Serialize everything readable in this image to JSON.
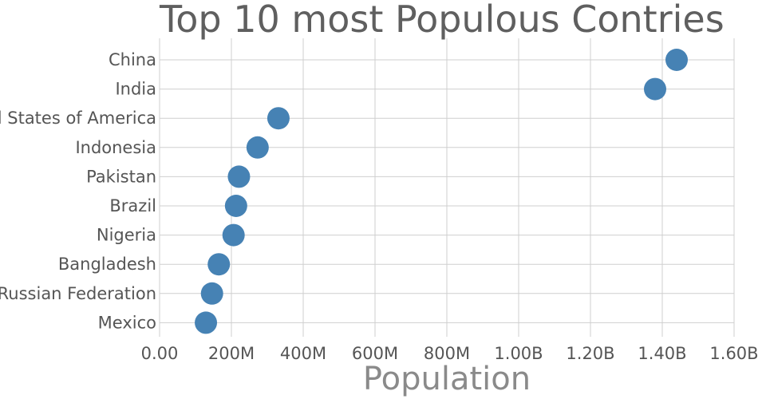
{
  "chart_data": {
    "type": "scatter",
    "title": "Top 10 most Populous Contries",
    "xlabel": "Population",
    "ylabel": "",
    "categories": [
      "China",
      "India",
      "United States of America",
      "Indonesia",
      "Pakistan",
      "Brazil",
      "Nigeria",
      "Bangladesh",
      "Russian Federation",
      "Mexico"
    ],
    "values": [
      1440000000,
      1380000000,
      331000000,
      273000000,
      221000000,
      213000000,
      206000000,
      165000000,
      146000000,
      129000000
    ],
    "xlim": [
      0,
      1600000000
    ],
    "xticks": [
      0,
      200000000,
      400000000,
      600000000,
      800000000,
      1000000000,
      1200000000,
      1400000000,
      1600000000
    ],
    "xtick_labels": [
      "0.00",
      "200M",
      "400M",
      "600M",
      "800M",
      "1.00B",
      "1.20B",
      "1.40B",
      "1.60B"
    ],
    "grid": true,
    "marker_color": "#4682b4"
  }
}
